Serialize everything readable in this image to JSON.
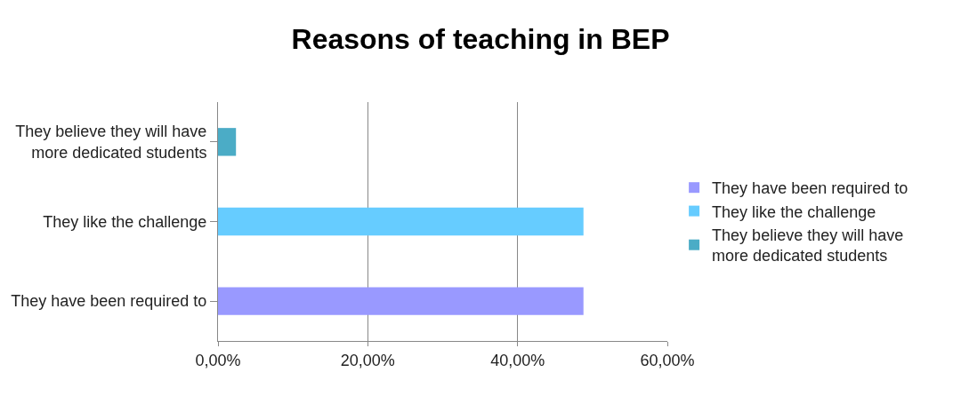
{
  "chart_data": {
    "type": "bar",
    "orientation": "horizontal",
    "title": "Reasons of teaching in BEP",
    "categories": [
      "They believe they will have\nmore dedicated students",
      "They like the challenge",
      "They have been required to"
    ],
    "series": [
      {
        "name": "They have been required to",
        "color": "#9999ff",
        "values": [
          null,
          null,
          48.8
        ]
      },
      {
        "name": "They like the challenge",
        "color": "#66ccff",
        "values": [
          null,
          48.8,
          null
        ]
      },
      {
        "name": "They believe they will have\nmore dedicated students",
        "color": "#4bacc6",
        "values": [
          2.4,
          null,
          null
        ]
      }
    ],
    "xlim": [
      0,
      60
    ],
    "xticks": [
      {
        "value": 0,
        "label": "0,00%"
      },
      {
        "value": 20,
        "label": "20,00%"
      },
      {
        "value": 40,
        "label": "40,00%"
      },
      {
        "value": 60,
        "label": "60,00%"
      }
    ],
    "grid": "x",
    "legend": "right"
  }
}
